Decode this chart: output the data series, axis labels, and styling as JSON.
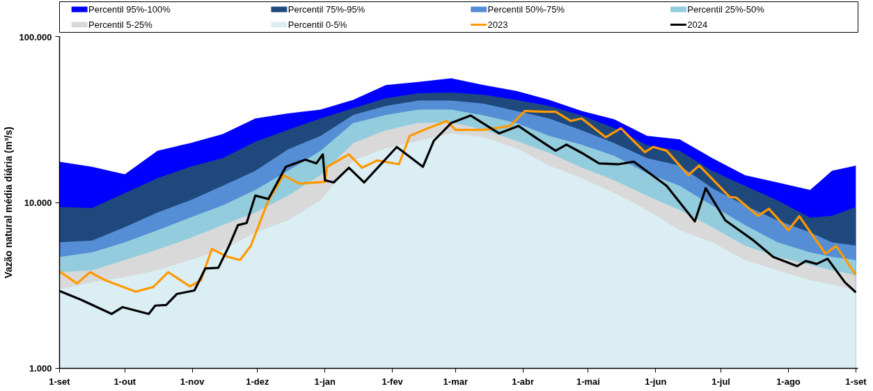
{
  "chart_data": {
    "type": "area",
    "ylabel": "Vazão natural média diária (m³/s)",
    "log": "y",
    "grid": false,
    "legend": "top",
    "xlim": [
      "2023-09-01",
      "2024-09-02"
    ],
    "ylim": [
      1000,
      100000
    ],
    "xticks": [
      {
        "value": "2023-09-01",
        "label": "1-set"
      },
      {
        "value": "2023-10-01",
        "label": "1-out"
      },
      {
        "value": "2023-11-01",
        "label": "1-nov"
      },
      {
        "value": "2023-12-01",
        "label": "1-dez"
      },
      {
        "value": "2024-01-01",
        "label": "1-jan"
      },
      {
        "value": "2024-02-01",
        "label": "1-fev"
      },
      {
        "value": "2024-03-01",
        "label": "1-mar"
      },
      {
        "value": "2024-04-01",
        "label": "1-abr"
      },
      {
        "value": "2024-05-01",
        "label": "1-mai"
      },
      {
        "value": "2024-06-01",
        "label": "1-jun"
      },
      {
        "value": "2024-07-01",
        "label": "1-jul"
      },
      {
        "value": "2024-08-01",
        "label": "1-ago"
      },
      {
        "value": "2024-09-01",
        "label": "1-set"
      }
    ],
    "yticks": [
      {
        "value": 1000,
        "label": "1.000"
      },
      {
        "value": 10000,
        "label": "10.000"
      },
      {
        "value": 100000,
        "label": "100.000"
      }
    ],
    "x": [
      "2023-09-01",
      "2023-09-16",
      "2023-10-01",
      "2023-10-16",
      "2023-10-31",
      "2023-11-15",
      "2023-11-30",
      "2023-12-15",
      "2023-12-30",
      "2024-01-14",
      "2024-01-29",
      "2024-02-13",
      "2024-02-28",
      "2024-03-14",
      "2024-03-29",
      "2024-04-13",
      "2024-04-28",
      "2024-05-13",
      "2024-05-28",
      "2024-06-12",
      "2024-06-27",
      "2024-07-12",
      "2024-07-27",
      "2024-08-11",
      "2024-08-21",
      "2024-09-01"
    ],
    "series": [
      {
        "name": "Percentil 95%-100%",
        "type": "area",
        "color": "#0000ff",
        "values": [
          17600,
          16400,
          14800,
          20500,
          22800,
          25800,
          32100,
          34400,
          36300,
          41500,
          51000,
          53200,
          56000,
          51000,
          47000,
          41500,
          35600,
          31700,
          25200,
          24000,
          18500,
          14600,
          13200,
          11900,
          15500,
          16700
        ]
      },
      {
        "name": "Percentil 75%-95%",
        "type": "area",
        "color": "#1f497d",
        "values": [
          9400,
          9250,
          11400,
          14000,
          16400,
          18500,
          23200,
          27400,
          32100,
          37000,
          42400,
          45500,
          46000,
          44600,
          41500,
          38200,
          33400,
          28000,
          22100,
          20500,
          15500,
          12600,
          10300,
          8100,
          8300,
          9400
        ]
      },
      {
        "name": "Percentil 50%-75%",
        "type": "area",
        "color": "#558ed5",
        "values": [
          5750,
          5900,
          7100,
          8700,
          10300,
          12600,
          15500,
          20900,
          25200,
          33700,
          38200,
          41100,
          41100,
          39400,
          35600,
          32100,
          27200,
          22800,
          18500,
          16700,
          12200,
          9600,
          7800,
          6600,
          5750,
          5500
        ]
      },
      {
        "name": "Percentil 25%-50%",
        "type": "area",
        "color": "#93cddd",
        "values": [
          4700,
          5000,
          5750,
          6800,
          8100,
          9600,
          11900,
          15500,
          20500,
          30100,
          33700,
          36300,
          36300,
          33400,
          30100,
          25200,
          22300,
          19100,
          15000,
          12600,
          9600,
          7300,
          5750,
          5000,
          4700,
          4500
        ]
      },
      {
        "name": "Percentil 5-25%",
        "type": "area",
        "color": "#d9d9d9",
        "values": [
          3800,
          3900,
          4500,
          5200,
          6100,
          7300,
          8700,
          11000,
          14600,
          22800,
          27200,
          30100,
          30400,
          27400,
          23500,
          19900,
          16200,
          13600,
          11000,
          9000,
          7100,
          5500,
          4700,
          4200,
          3900,
          3650
        ]
      },
      {
        "name": "Percentil 0-5%",
        "type": "area",
        "color": "#dbeef4",
        "values": [
          3000,
          3300,
          3550,
          3900,
          4500,
          5200,
          6600,
          7800,
          10300,
          17900,
          21200,
          23500,
          26100,
          24700,
          21200,
          16700,
          14000,
          11400,
          9000,
          6800,
          5750,
          4500,
          3900,
          3400,
          3200,
          2950
        ]
      },
      {
        "name": "2023",
        "type": "line",
        "color": "#ff9900",
        "x": [
          "2023-09-01",
          "2023-09-09",
          "2023-09-15",
          "2023-09-22",
          "2023-10-06",
          "2023-10-14",
          "2023-10-21",
          "2023-10-31",
          "2023-11-05",
          "2023-11-10",
          "2023-11-17",
          "2023-11-23",
          "2023-11-28",
          "2023-12-06",
          "2023-12-13",
          "2023-12-20",
          "2024-01-01",
          "2024-01-02",
          "2024-01-12",
          "2024-01-18",
          "2024-01-25",
          "2024-02-04",
          "2024-02-09",
          "2024-02-15",
          "2024-02-26",
          "2024-03-01",
          "2024-03-14",
          "2024-03-26",
          "2024-04-02",
          "2024-04-11",
          "2024-04-16",
          "2024-04-23",
          "2024-04-28",
          "2024-05-09",
          "2024-05-16",
          "2024-05-27",
          "2024-05-31",
          "2024-06-06",
          "2024-06-16",
          "2024-06-21",
          "2024-07-05",
          "2024-07-08",
          "2024-07-18",
          "2024-07-23",
          "2024-08-01",
          "2024-08-06",
          "2024-08-18",
          "2024-08-23",
          "2024-09-01"
        ],
        "values": [
          3840,
          3250,
          3800,
          3400,
          2900,
          3090,
          3800,
          3120,
          3400,
          5240,
          4720,
          4500,
          5500,
          10300,
          14600,
          13000,
          13300,
          16400,
          19500,
          16200,
          17900,
          17000,
          25200,
          27200,
          31000,
          27400,
          27400,
          28900,
          35600,
          35200,
          35200,
          31000,
          32100,
          24700,
          28000,
          20100,
          21600,
          20500,
          14600,
          16700,
          10800,
          10700,
          8300,
          9160,
          6800,
          8260,
          4920,
          5460,
          3650
        ]
      },
      {
        "name": "2024",
        "type": "line",
        "color": "#000000",
        "x": [
          "2023-09-01",
          "2023-09-11",
          "2023-09-25",
          "2023-09-30",
          "2023-10-12",
          "2023-10-15",
          "2023-10-20",
          "2023-10-25",
          "2023-11-02",
          "2023-11-07",
          "2023-11-13",
          "2023-11-18",
          "2023-11-22",
          "2023-11-26",
          "2023-11-30",
          "2023-12-06",
          "2023-12-14",
          "2023-12-23",
          "2023-12-28",
          "2023-12-31",
          "2024-01-01",
          "2024-01-05",
          "2024-01-12",
          "2024-01-19",
          "2024-02-03",
          "2024-02-15",
          "2024-02-20",
          "2024-02-28",
          "2024-03-08",
          "2024-03-21",
          "2024-03-30",
          "2024-04-07",
          "2024-04-16",
          "2024-04-21",
          "2024-04-28",
          "2024-05-06",
          "2024-05-15",
          "2024-05-22",
          "2024-06-06",
          "2024-06-19",
          "2024-06-24",
          "2024-07-03",
          "2024-07-16",
          "2024-07-25",
          "2024-08-05",
          "2024-08-09",
          "2024-08-14",
          "2024-08-19",
          "2024-08-27",
          "2024-09-01"
        ],
        "values": [
          2930,
          2590,
          2130,
          2340,
          2130,
          2390,
          2410,
          2810,
          2950,
          4000,
          4040,
          5500,
          7300,
          7520,
          11000,
          10500,
          16400,
          18100,
          17200,
          19500,
          13600,
          13200,
          16200,
          13200,
          21600,
          16400,
          23500,
          30100,
          33400,
          26100,
          28900,
          24500,
          20500,
          22300,
          19900,
          17200,
          17000,
          17600,
          12600,
          7680,
          12200,
          7800,
          5900,
          4700,
          4130,
          4440,
          4260,
          4580,
          3300,
          2870
        ]
      }
    ]
  }
}
